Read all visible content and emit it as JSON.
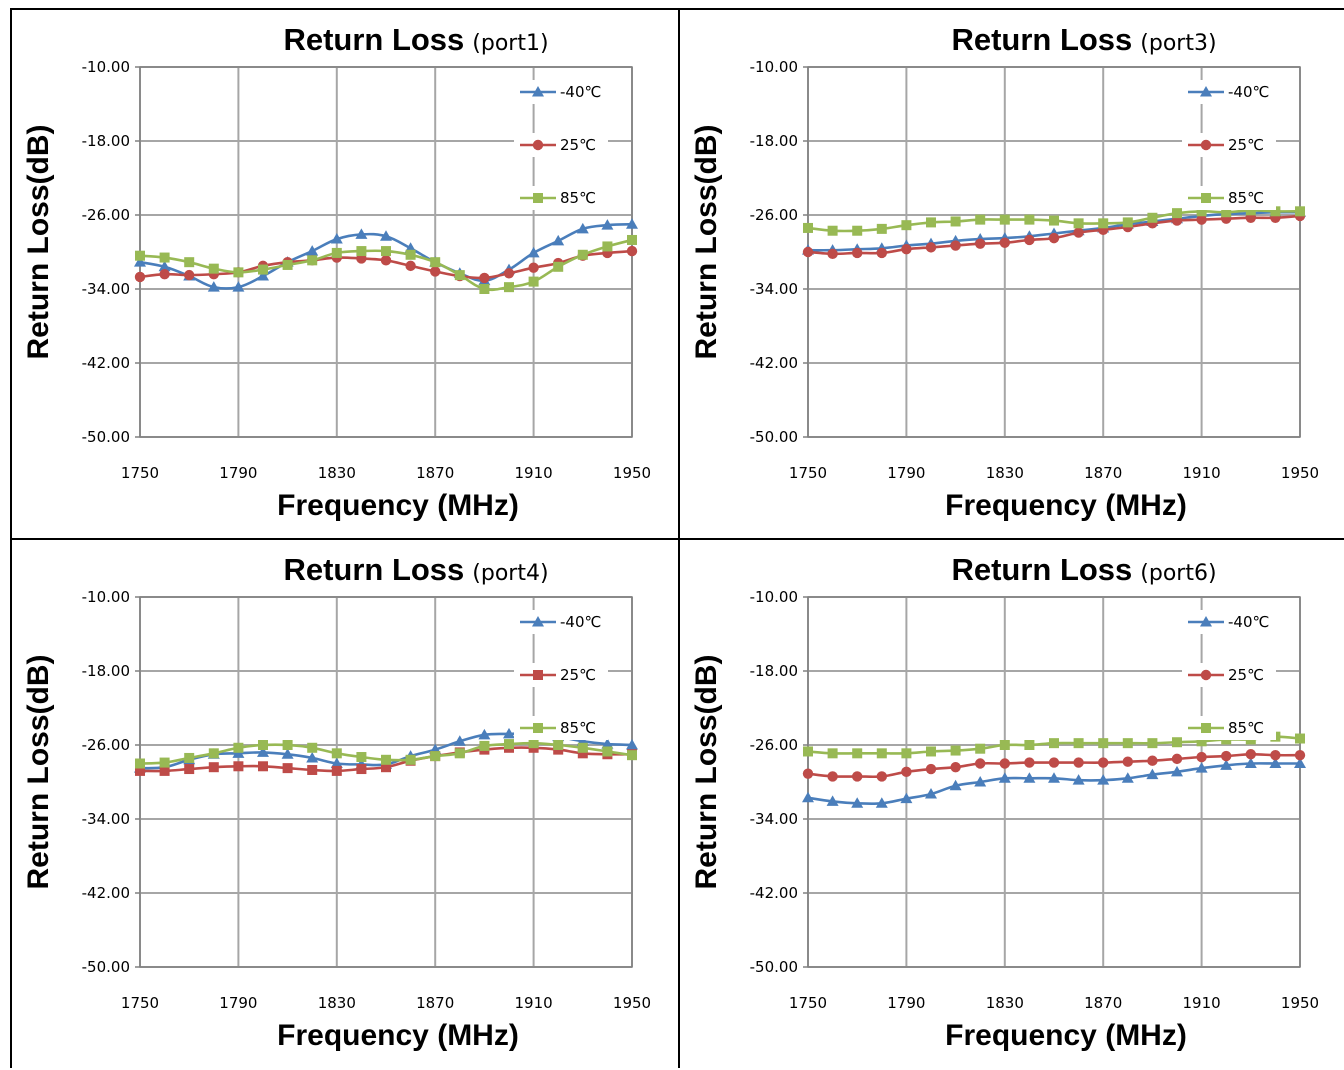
{
  "colors": {
    "neg40": "#4a7ebb",
    "c25": "#be4b48",
    "c85": "#98b954",
    "grid": "#a6a6a6",
    "frame": "#808080"
  },
  "chart_data": [
    {
      "type": "line",
      "title": "Return Loss",
      "subtitle": "(port1)",
      "xlabel": "Frequency (MHz)",
      "ylabel": "Return Loss(dB)",
      "xlim": [
        1750,
        1950
      ],
      "ylim": [
        -50,
        -10
      ],
      "xticks": [
        "1750",
        "1790",
        "1830",
        "1870",
        "1910",
        "1950"
      ],
      "yticks": [
        "-10.00",
        "-18.00",
        "-26.00",
        "-34.00",
        "-42.00",
        "-50.00"
      ],
      "grid": true,
      "legend": "top-right",
      "x": [
        1750,
        1760,
        1770,
        1780,
        1790,
        1800,
        1810,
        1820,
        1830,
        1840,
        1850,
        1860,
        1870,
        1880,
        1890,
        1900,
        1910,
        1920,
        1930,
        1940,
        1950
      ],
      "series": [
        {
          "name": "-40℃",
          "marker": "triangle",
          "color": "#4a7ebb",
          "values": [
            -31.1,
            -31.6,
            -32.6,
            -33.8,
            -33.8,
            -32.6,
            -31.1,
            -29.9,
            -28.6,
            -28.1,
            -28.3,
            -29.6,
            -31.1,
            -32.3,
            -33.1,
            -31.9,
            -30.1,
            -28.8,
            -27.5,
            -27.1,
            -27.0
          ]
        },
        {
          "name": "25℃",
          "color": "#be4b48",
          "marker": "circle",
          "values": [
            -32.7,
            -32.4,
            -32.5,
            -32.4,
            -32.2,
            -31.5,
            -31.1,
            -30.9,
            -30.6,
            -30.7,
            -30.9,
            -31.5,
            -32.1,
            -32.6,
            -32.8,
            -32.3,
            -31.7,
            -31.2,
            -30.4,
            -30.1,
            -29.9
          ]
        },
        {
          "name": "85℃",
          "color": "#98b954",
          "marker": "square",
          "values": [
            -30.4,
            -30.6,
            -31.1,
            -31.8,
            -32.2,
            -31.9,
            -31.4,
            -30.9,
            -30.1,
            -29.9,
            -29.9,
            -30.3,
            -31.1,
            -32.5,
            -34.0,
            -33.8,
            -33.2,
            -31.6,
            -30.3,
            -29.4,
            -28.7
          ]
        }
      ]
    },
    {
      "type": "line",
      "title": "Return Loss",
      "subtitle": "(port3)",
      "xlabel": "Frequency (MHz)",
      "ylabel": "Return Loss(dB)",
      "xlim": [
        1750,
        1950
      ],
      "ylim": [
        -50,
        -10
      ],
      "xticks": [
        "1750",
        "1790",
        "1830",
        "1870",
        "1910",
        "1950"
      ],
      "yticks": [
        "-10.00",
        "-18.00",
        "-26.00",
        "-34.00",
        "-42.00",
        "-50.00"
      ],
      "grid": true,
      "legend": "top-right",
      "x": [
        1750,
        1760,
        1770,
        1780,
        1790,
        1800,
        1810,
        1820,
        1830,
        1840,
        1850,
        1860,
        1870,
        1880,
        1890,
        1900,
        1910,
        1920,
        1930,
        1940,
        1950
      ],
      "series": [
        {
          "name": "-40℃",
          "marker": "triangle",
          "color": "#4a7ebb",
          "values": [
            -29.8,
            -29.8,
            -29.7,
            -29.6,
            -29.3,
            -29.1,
            -28.8,
            -28.6,
            -28.5,
            -28.3,
            -28.0,
            -27.7,
            -27.4,
            -27.0,
            -26.7,
            -26.4,
            -26.1,
            -25.9,
            -25.8,
            -25.7,
            -25.7
          ]
        },
        {
          "name": "25℃",
          "color": "#be4b48",
          "marker": "circle",
          "values": [
            -30.0,
            -30.2,
            -30.1,
            -30.1,
            -29.7,
            -29.5,
            -29.3,
            -29.1,
            -29.0,
            -28.7,
            -28.5,
            -27.9,
            -27.6,
            -27.3,
            -26.9,
            -26.6,
            -26.5,
            -26.4,
            -26.3,
            -26.3,
            -26.1
          ]
        },
        {
          "name": "85℃",
          "color": "#98b954",
          "marker": "square",
          "values": [
            -27.4,
            -27.7,
            -27.7,
            -27.5,
            -27.1,
            -26.8,
            -26.7,
            -26.5,
            -26.5,
            -26.5,
            -26.6,
            -26.9,
            -26.9,
            -26.8,
            -26.3,
            -25.8,
            -25.6,
            -25.7,
            -25.5,
            -25.6,
            -25.6
          ]
        }
      ]
    },
    {
      "type": "line",
      "title": "Return Loss",
      "subtitle": "(port4)",
      "xlabel": "Frequency (MHz)",
      "ylabel": "Return Loss(dB)",
      "xlim": [
        1750,
        1950
      ],
      "ylim": [
        -50,
        -10
      ],
      "xticks": [
        "1750",
        "1790",
        "1830",
        "1870",
        "1910",
        "1950"
      ],
      "yticks": [
        "-10.00",
        "-18.00",
        "-26.00",
        "-34.00",
        "-42.00",
        "-50.00"
      ],
      "grid": true,
      "legend": "top-right",
      "x": [
        1750,
        1760,
        1770,
        1780,
        1790,
        1800,
        1810,
        1820,
        1830,
        1840,
        1850,
        1860,
        1870,
        1880,
        1890,
        1900,
        1910,
        1920,
        1930,
        1940,
        1950
      ],
      "series": [
        {
          "name": "-40℃",
          "marker": "triangle",
          "color": "#4a7ebb",
          "values": [
            -28.5,
            -28.4,
            -27.6,
            -27.0,
            -26.9,
            -26.8,
            -27.0,
            -27.4,
            -28.0,
            -28.1,
            -28.1,
            -27.2,
            -26.5,
            -25.6,
            -24.9,
            -24.8,
            -24.7,
            -25.1,
            -25.6,
            -25.9,
            -26.0
          ]
        },
        {
          "name": "25℃",
          "color": "#be4b48",
          "marker": "square",
          "values": [
            -28.8,
            -28.8,
            -28.6,
            -28.4,
            -28.3,
            -28.3,
            -28.5,
            -28.7,
            -28.8,
            -28.6,
            -28.4,
            -27.7,
            -27.2,
            -26.8,
            -26.5,
            -26.3,
            -26.3,
            -26.5,
            -26.9,
            -27.0,
            -27.0
          ]
        },
        {
          "name": "85℃",
          "color": "#98b954",
          "marker": "square",
          "values": [
            -28.0,
            -27.9,
            -27.4,
            -26.9,
            -26.3,
            -26.0,
            -26.0,
            -26.3,
            -26.9,
            -27.3,
            -27.6,
            -27.6,
            -27.2,
            -26.9,
            -26.1,
            -25.9,
            -25.8,
            -26.0,
            -26.3,
            -26.7,
            -27.1
          ]
        }
      ]
    },
    {
      "type": "line",
      "title": "Return Loss",
      "subtitle": "(port6)",
      "xlabel": "Frequency (MHz)",
      "ylabel": "Return Loss(dB)",
      "xlim": [
        1750,
        1950
      ],
      "ylim": [
        -50,
        -10
      ],
      "xticks": [
        "1750",
        "1790",
        "1830",
        "1870",
        "1910",
        "1950"
      ],
      "yticks": [
        "-10.00",
        "-18.00",
        "-26.00",
        "-34.00",
        "-42.00",
        "-50.00"
      ],
      "grid": true,
      "legend": "top-right",
      "x": [
        1750,
        1760,
        1770,
        1780,
        1790,
        1800,
        1810,
        1820,
        1830,
        1840,
        1850,
        1860,
        1870,
        1880,
        1890,
        1900,
        1910,
        1920,
        1930,
        1940,
        1950
      ],
      "series": [
        {
          "name": "-40℃",
          "marker": "triangle",
          "color": "#4a7ebb",
          "values": [
            -31.7,
            -32.1,
            -32.3,
            -32.3,
            -31.8,
            -31.3,
            -30.4,
            -30.0,
            -29.6,
            -29.6,
            -29.6,
            -29.8,
            -29.8,
            -29.6,
            -29.2,
            -28.9,
            -28.5,
            -28.2,
            -28.0,
            -28.0,
            -28.0
          ]
        },
        {
          "name": "25℃",
          "color": "#be4b48",
          "marker": "circle",
          "values": [
            -29.1,
            -29.4,
            -29.4,
            -29.4,
            -28.9,
            -28.6,
            -28.4,
            -28.0,
            -28.0,
            -27.9,
            -27.9,
            -27.9,
            -27.9,
            -27.8,
            -27.7,
            -27.5,
            -27.3,
            -27.2,
            -27.0,
            -27.1,
            -27.1
          ]
        },
        {
          "name": "85℃",
          "color": "#98b954",
          "marker": "square",
          "values": [
            -26.7,
            -26.9,
            -26.9,
            -26.9,
            -26.9,
            -26.7,
            -26.6,
            -26.4,
            -26.0,
            -26.0,
            -25.8,
            -25.8,
            -25.8,
            -25.8,
            -25.8,
            -25.7,
            -25.6,
            -25.4,
            -25.4,
            -25.1,
            -25.3
          ]
        }
      ]
    }
  ]
}
